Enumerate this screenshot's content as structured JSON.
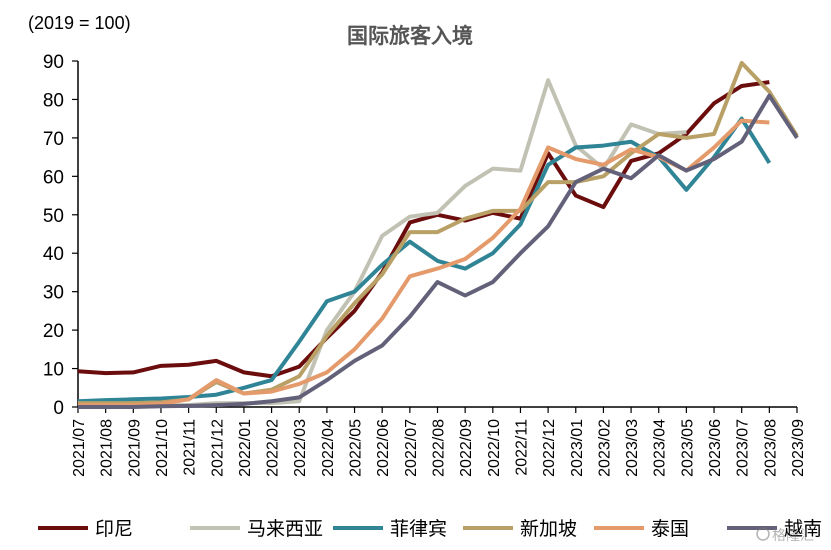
{
  "chart_data": {
    "type": "line",
    "title": "国际旅客入境",
    "unit_label": "(2019 = 100)",
    "ylim": [
      0,
      90
    ],
    "yticks": [
      0,
      10,
      20,
      30,
      40,
      50,
      60,
      70,
      80,
      90
    ],
    "grid": false,
    "legend_position": "bottom",
    "categories": [
      "2021/07",
      "2021/08",
      "2021/09",
      "2021/10",
      "2021/11",
      "2021/12",
      "2022/01",
      "2022/02",
      "2022/03",
      "2022/04",
      "2022/05",
      "2022/06",
      "2022/07",
      "2022/08",
      "2022/09",
      "2022/10",
      "2022/11",
      "2022/12",
      "2023/01",
      "2023/02",
      "2023/03",
      "2023/04",
      "2023/05",
      "2023/06",
      "2023/07",
      "2023/08",
      "2023/09"
    ],
    "series": [
      {
        "name": "印尼",
        "color": "#6b0d0d",
        "values": [
          9.3,
          8.8,
          9.0,
          10.7,
          11.0,
          12.0,
          9.0,
          8.0,
          10.5,
          18.0,
          25.0,
          35.0,
          48.0,
          50.0,
          48.5,
          50.5,
          49.0,
          66.0,
          55.0,
          52.0,
          64.0,
          66.0,
          71.0,
          79.0,
          83.5,
          84.5,
          null
        ]
      },
      {
        "name": "马来西亚",
        "color": "#c2c2b4",
        "values": [
          0.5,
          0.5,
          0.5,
          0.5,
          0.5,
          1.0,
          1.0,
          1.0,
          1.5,
          20.0,
          30.0,
          44.5,
          49.5,
          50.5,
          57.5,
          62.0,
          61.5,
          85.0,
          68.0,
          62.0,
          73.5,
          71.0,
          71.5,
          null,
          null,
          null,
          null
        ]
      },
      {
        "name": "菲律宾",
        "color": "#2f8496",
        "values": [
          1.5,
          1.8,
          2.0,
          2.2,
          2.6,
          3.2,
          5.0,
          7.0,
          17.0,
          27.5,
          30.0,
          37.0,
          43.0,
          38.0,
          36.0,
          40.0,
          47.5,
          63.0,
          67.5,
          68.0,
          69.0,
          65.0,
          56.5,
          65.0,
          75.0,
          63.5,
          null
        ]
      },
      {
        "name": "新加坡",
        "color": "#b9a066",
        "values": [
          1.0,
          1.0,
          1.0,
          1.2,
          2.0,
          6.5,
          3.5,
          4.5,
          8.0,
          18.5,
          27.0,
          34.5,
          45.5,
          45.5,
          49.0,
          51.0,
          51.0,
          58.5,
          58.5,
          60.0,
          66.0,
          71.0,
          70.0,
          71.0,
          89.5,
          82.0,
          70.5
        ]
      },
      {
        "name": "泰国",
        "color": "#e49a6a",
        "values": [
          0.5,
          0.5,
          0.5,
          0.8,
          2.0,
          7.0,
          3.5,
          4.0,
          6.0,
          9.0,
          15.0,
          23.0,
          34.0,
          36.0,
          38.5,
          44.0,
          51.5,
          67.5,
          64.5,
          63.0,
          67.0,
          65.0,
          61.5,
          67.5,
          74.5,
          74.0,
          null
        ]
      },
      {
        "name": "越南",
        "color": "#636179",
        "values": [
          0.0,
          0.0,
          0.0,
          0.2,
          0.3,
          0.5,
          0.8,
          1.5,
          2.5,
          7.0,
          12.0,
          16.0,
          23.5,
          32.5,
          29.0,
          32.5,
          40.0,
          47.0,
          58.5,
          62.0,
          59.5,
          65.5,
          61.5,
          64.5,
          69.0,
          81.0,
          70.0
        ]
      }
    ]
  },
  "watermark": "格隆汇"
}
